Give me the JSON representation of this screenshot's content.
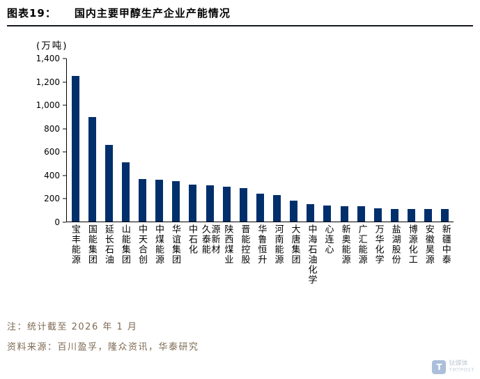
{
  "figure": {
    "label": "图表19：",
    "title": "国内主要甲醇生产企业产能情况"
  },
  "chart_data": {
    "type": "bar",
    "title": "国内主要甲醇生产企业产能情况",
    "unit_label": "(万吨)",
    "categories": [
      "宝丰能源",
      "国能集团",
      "延长石油",
      "山能集团",
      "中天合创",
      "中煤能源",
      "华谊集团",
      "中石化",
      "久泰能\n源新材",
      "陕西煤业",
      "晋能控股",
      "华鲁恒升",
      "河南能源",
      "大唐集团",
      "中海石油化学",
      "心连心",
      "新奥能源",
      "广汇能源",
      "万华化学",
      "盐湖股份",
      "博源化工",
      "安徽昊源",
      "新疆中泰"
    ],
    "values": [
      1250,
      900,
      660,
      510,
      365,
      360,
      345,
      315,
      310,
      300,
      285,
      240,
      230,
      180,
      150,
      135,
      130,
      130,
      115,
      110,
      108,
      106,
      105
    ],
    "ylim": [
      0,
      1400
    ],
    "y_ticks": [
      0,
      200,
      400,
      600,
      800,
      1000,
      1200,
      1400
    ],
    "y_tick_labels": [
      "0",
      "200",
      "400",
      "600",
      "800",
      "1,000",
      "1,200",
      "1,400"
    ],
    "grid": false,
    "legend": "none",
    "bar_color": "#002f6c"
  },
  "notes": {
    "note": "注：统计截至 2026 年 1 月",
    "source": "资料来源：百川盈孚，隆众资讯，华泰研究"
  },
  "watermark": {
    "icon": "T",
    "name": "钛媒体",
    "sub": "TMTPOST"
  }
}
